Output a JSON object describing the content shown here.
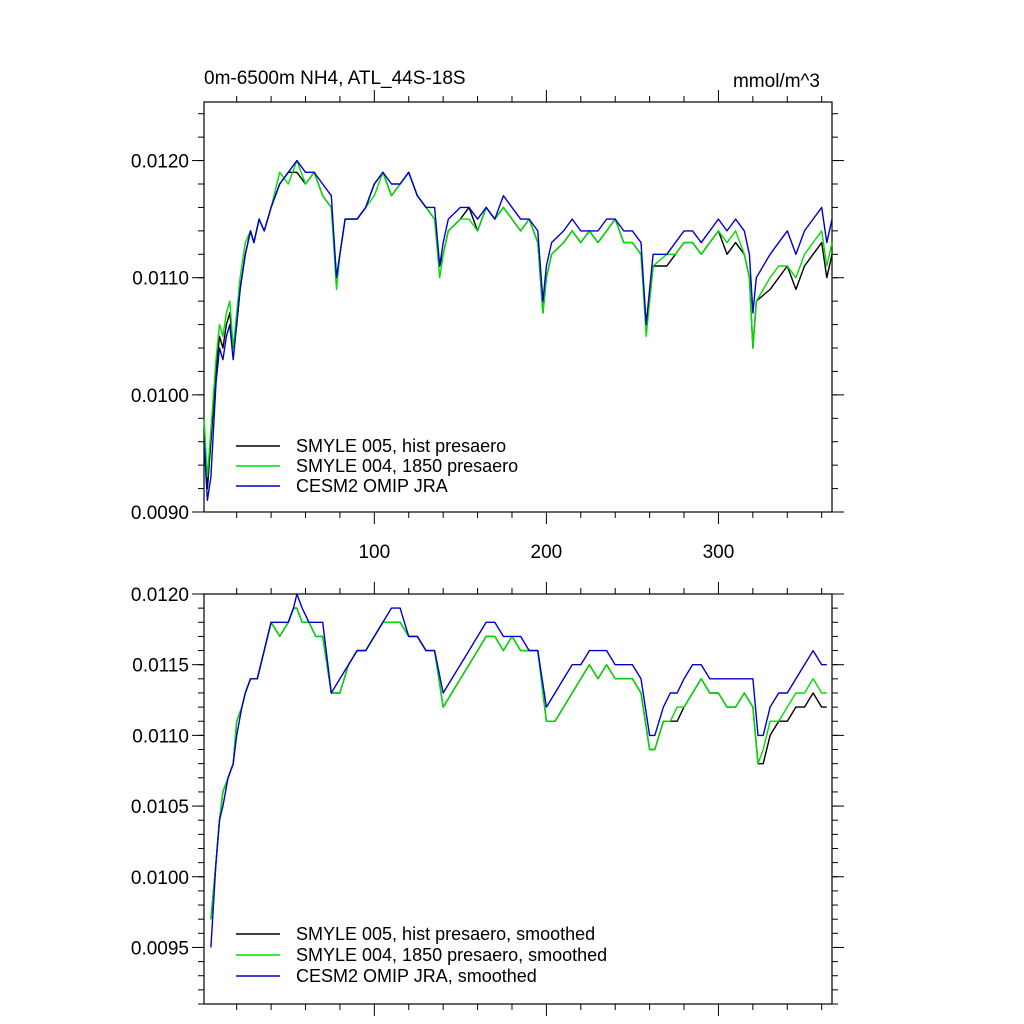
{
  "figure": {
    "title_left": "0m-6500m NH4, ATL_44S-18S",
    "title_right": "mmol/m^3"
  },
  "colors": {
    "smyle005": "#000000",
    "smyle004": "#00dd00",
    "omip": "#0000cc"
  },
  "chart_data": [
    {
      "type": "line",
      "panel": "top",
      "title": "0m-6500m NH4, ATL_44S-18S",
      "units": "mmol/m^3",
      "xlabel": "",
      "ylabel": "",
      "xlim": [
        1,
        366
      ],
      "ylim": [
        0.009,
        0.0125
      ],
      "x_ticks": [
        100,
        200,
        300
      ],
      "x_tick_labels": [
        "100",
        "200",
        "300"
      ],
      "y_ticks": [
        0.009,
        0.01,
        0.011,
        0.012
      ],
      "y_tick_labels": [
        "0.0090",
        "0.0100",
        "0.0110",
        "0.0120"
      ],
      "legend": "bottom-left",
      "x": [
        1,
        3,
        5,
        8,
        10,
        12,
        14,
        16,
        18,
        20,
        22,
        25,
        28,
        30,
        33,
        36,
        40,
        45,
        50,
        55,
        60,
        65,
        70,
        75,
        78,
        80,
        83,
        90,
        95,
        100,
        105,
        110,
        115,
        120,
        125,
        130,
        135,
        138,
        140,
        143,
        150,
        155,
        160,
        165,
        170,
        175,
        180,
        185,
        190,
        195,
        198,
        200,
        203,
        210,
        215,
        220,
        225,
        230,
        235,
        240,
        245,
        250,
        255,
        258,
        260,
        262,
        270,
        275,
        280,
        285,
        290,
        295,
        300,
        305,
        310,
        315,
        318,
        320,
        322,
        330,
        335,
        340,
        345,
        350,
        355,
        360,
        363,
        366
      ],
      "series": [
        {
          "name": "SMYLE 005, hist presaero",
          "color": "#000000",
          "values": [
            0.0098,
            0.0092,
            0.0096,
            0.0102,
            0.0105,
            0.0104,
            0.0106,
            0.0107,
            0.0104,
            0.0106,
            0.0109,
            0.0112,
            0.0114,
            0.0113,
            0.0115,
            0.0114,
            0.0116,
            0.0118,
            0.0119,
            0.0119,
            0.0118,
            0.0119,
            0.0117,
            0.0116,
            0.011,
            0.0112,
            0.0115,
            0.0115,
            0.0116,
            0.0118,
            0.0119,
            0.0117,
            0.0118,
            0.0119,
            0.0117,
            0.0116,
            0.0115,
            0.0111,
            0.0112,
            0.0114,
            0.0115,
            0.0116,
            0.0114,
            0.0116,
            0.0115,
            0.0116,
            0.0115,
            0.0114,
            0.0115,
            0.0113,
            0.0107,
            0.011,
            0.0112,
            0.0113,
            0.0114,
            0.0113,
            0.0114,
            0.0113,
            0.0114,
            0.0115,
            0.0113,
            0.0113,
            0.0112,
            0.0106,
            0.0108,
            0.0111,
            0.0111,
            0.0112,
            0.0113,
            0.0113,
            0.0112,
            0.0113,
            0.0114,
            0.0112,
            0.0113,
            0.0112,
            0.011,
            0.0104,
            0.0108,
            0.0109,
            0.011,
            0.0111,
            0.0109,
            0.0111,
            0.0112,
            0.0113,
            0.011,
            0.0112
          ]
        },
        {
          "name": "SMYLE 004, 1850 presaero",
          "color": "#00dd00",
          "values": [
            0.0098,
            0.0093,
            0.0097,
            0.0103,
            0.0106,
            0.0105,
            0.0107,
            0.0108,
            0.0104,
            0.0107,
            0.011,
            0.0113,
            0.0114,
            0.0113,
            0.0115,
            0.0114,
            0.0116,
            0.0119,
            0.0118,
            0.012,
            0.0118,
            0.0119,
            0.0117,
            0.0116,
            0.0109,
            0.0112,
            0.0115,
            0.0115,
            0.0116,
            0.0117,
            0.0119,
            0.0117,
            0.0118,
            0.0119,
            0.0117,
            0.0116,
            0.0115,
            0.011,
            0.0112,
            0.0114,
            0.0115,
            0.0115,
            0.0114,
            0.0116,
            0.0115,
            0.0116,
            0.0115,
            0.0114,
            0.0115,
            0.0113,
            0.0107,
            0.011,
            0.0112,
            0.0113,
            0.0114,
            0.0113,
            0.0114,
            0.0113,
            0.0114,
            0.0115,
            0.0113,
            0.0113,
            0.0112,
            0.0105,
            0.0108,
            0.0111,
            0.0112,
            0.0112,
            0.0113,
            0.0113,
            0.0112,
            0.0113,
            0.0114,
            0.0113,
            0.0114,
            0.0112,
            0.011,
            0.0104,
            0.0108,
            0.011,
            0.0111,
            0.0111,
            0.011,
            0.0112,
            0.0113,
            0.0114,
            0.0111,
            0.0113
          ]
        },
        {
          "name": "CESM2 OMIP JRA",
          "color": "#0000cc",
          "values": [
            0.0096,
            0.0091,
            0.0093,
            0.0101,
            0.0104,
            0.0103,
            0.0105,
            0.0106,
            0.0103,
            0.0106,
            0.0109,
            0.0112,
            0.0114,
            0.0113,
            0.0115,
            0.0114,
            0.0116,
            0.0118,
            0.0119,
            0.012,
            0.0119,
            0.0119,
            0.0118,
            0.0117,
            0.011,
            0.0112,
            0.0115,
            0.0115,
            0.0116,
            0.0118,
            0.0119,
            0.0118,
            0.0118,
            0.0119,
            0.0117,
            0.0116,
            0.0116,
            0.0111,
            0.0113,
            0.0115,
            0.0116,
            0.0116,
            0.0115,
            0.0116,
            0.0115,
            0.0117,
            0.0116,
            0.0115,
            0.0115,
            0.0114,
            0.0108,
            0.0111,
            0.0113,
            0.0114,
            0.0115,
            0.0114,
            0.0114,
            0.0114,
            0.0115,
            0.0115,
            0.0114,
            0.0114,
            0.0113,
            0.0106,
            0.0109,
            0.0112,
            0.0112,
            0.0113,
            0.0114,
            0.0114,
            0.0113,
            0.0114,
            0.0115,
            0.0114,
            0.0115,
            0.0114,
            0.0112,
            0.0107,
            0.011,
            0.0112,
            0.0113,
            0.0114,
            0.0112,
            0.0114,
            0.0115,
            0.0116,
            0.0113,
            0.0115
          ]
        }
      ]
    },
    {
      "type": "line",
      "panel": "bottom",
      "title": "",
      "xlabel": "",
      "ylabel": "",
      "xlim": [
        1,
        366
      ],
      "ylim": [
        0.0091,
        0.012
      ],
      "x_ticks": [
        100,
        200,
        300
      ],
      "x_tick_labels": [],
      "y_ticks": [
        0.0095,
        0.01,
        0.0105,
        0.011,
        0.0115,
        0.012
      ],
      "y_tick_labels": [
        "0.0095",
        "0.0100",
        "0.0105",
        "0.0110",
        "0.0115",
        "0.0120"
      ],
      "legend": "bottom-left",
      "x": [
        5,
        8,
        10,
        12,
        15,
        18,
        20,
        23,
        25,
        28,
        32,
        36,
        40,
        45,
        50,
        53,
        55,
        58,
        62,
        66,
        70,
        75,
        80,
        85,
        90,
        95,
        100,
        105,
        110,
        115,
        120,
        125,
        130,
        135,
        140,
        145,
        150,
        155,
        160,
        165,
        170,
        175,
        180,
        185,
        190,
        195,
        200,
        205,
        210,
        215,
        220,
        225,
        230,
        235,
        240,
        245,
        250,
        255,
        260,
        263,
        268,
        272,
        276,
        280,
        285,
        290,
        295,
        300,
        305,
        310,
        315,
        320,
        323,
        326,
        330,
        335,
        340,
        345,
        350,
        355,
        360,
        363
      ],
      "series": [
        {
          "name": "SMYLE 005, hist presaero, smoothed",
          "color": "#000000",
          "values": [
            0.0097,
            0.0101,
            0.0104,
            0.0106,
            0.0107,
            0.0108,
            0.0111,
            0.0112,
            0.0113,
            0.0114,
            0.0114,
            0.0116,
            0.0118,
            0.0117,
            0.0118,
            0.0119,
            0.0119,
            0.0118,
            0.0118,
            0.0117,
            0.0117,
            0.0113,
            0.0113,
            0.0115,
            0.0116,
            0.0116,
            0.0117,
            0.0118,
            0.0118,
            0.0118,
            0.0117,
            0.0117,
            0.0116,
            0.0116,
            0.0112,
            0.0113,
            0.0114,
            0.0115,
            0.0116,
            0.0117,
            0.0117,
            0.0116,
            0.0117,
            0.0116,
            0.0116,
            0.0116,
            0.0111,
            0.0111,
            0.0112,
            0.0113,
            0.0114,
            0.0115,
            0.0114,
            0.0115,
            0.0114,
            0.0114,
            0.0114,
            0.0113,
            0.0109,
            0.0109,
            0.0111,
            0.0111,
            0.0111,
            0.0112,
            0.0113,
            0.0114,
            0.0113,
            0.0113,
            0.0112,
            0.0112,
            0.0113,
            0.0112,
            0.0108,
            0.0108,
            0.011,
            0.0111,
            0.0111,
            0.0112,
            0.0112,
            0.0113,
            0.0112,
            0.0112
          ]
        },
        {
          "name": "SMYLE 004, 1850 presaero, smoothed",
          "color": "#00dd00",
          "values": [
            0.0097,
            0.0101,
            0.0104,
            0.0106,
            0.0107,
            0.0108,
            0.0111,
            0.0112,
            0.0113,
            0.0114,
            0.0114,
            0.0116,
            0.0118,
            0.0117,
            0.0118,
            0.0119,
            0.0119,
            0.0118,
            0.0118,
            0.0117,
            0.0117,
            0.0113,
            0.0113,
            0.0115,
            0.0116,
            0.0116,
            0.0117,
            0.0118,
            0.0118,
            0.0118,
            0.0117,
            0.0117,
            0.0116,
            0.0116,
            0.0112,
            0.0113,
            0.0114,
            0.0115,
            0.0116,
            0.0117,
            0.0117,
            0.0116,
            0.0117,
            0.0116,
            0.0116,
            0.0116,
            0.0111,
            0.0111,
            0.0112,
            0.0113,
            0.0114,
            0.0115,
            0.0114,
            0.0115,
            0.0114,
            0.0114,
            0.0114,
            0.0113,
            0.0109,
            0.0109,
            0.0111,
            0.0111,
            0.0112,
            0.0112,
            0.0113,
            0.0114,
            0.0113,
            0.0113,
            0.0112,
            0.0112,
            0.0113,
            0.0112,
            0.0108,
            0.0109,
            0.0111,
            0.0111,
            0.0112,
            0.0113,
            0.0113,
            0.0114,
            0.0113,
            0.0113
          ]
        },
        {
          "name": "CESM2 OMIP JRA, smoothed",
          "color": "#0000cc",
          "values": [
            0.0095,
            0.0101,
            0.0104,
            0.0105,
            0.0107,
            0.0108,
            0.011,
            0.0112,
            0.0113,
            0.0114,
            0.0114,
            0.0116,
            0.0118,
            0.0118,
            0.0118,
            0.0119,
            0.012,
            0.0119,
            0.0118,
            0.0118,
            0.0118,
            0.0113,
            0.0114,
            0.0115,
            0.0116,
            0.0116,
            0.0117,
            0.0118,
            0.0119,
            0.0119,
            0.0117,
            0.0117,
            0.0116,
            0.0116,
            0.0113,
            0.0114,
            0.0115,
            0.0116,
            0.0117,
            0.0118,
            0.0118,
            0.0117,
            0.0117,
            0.0117,
            0.0116,
            0.0116,
            0.0112,
            0.0113,
            0.0114,
            0.0115,
            0.0115,
            0.0116,
            0.0116,
            0.0116,
            0.0115,
            0.0115,
            0.0115,
            0.0114,
            0.011,
            0.011,
            0.0112,
            0.0113,
            0.0113,
            0.0114,
            0.0115,
            0.0115,
            0.0114,
            0.0114,
            0.0114,
            0.0114,
            0.0114,
            0.0114,
            0.011,
            0.011,
            0.0112,
            0.0113,
            0.0113,
            0.0114,
            0.0115,
            0.0116,
            0.0115,
            0.0115
          ]
        }
      ]
    }
  ]
}
